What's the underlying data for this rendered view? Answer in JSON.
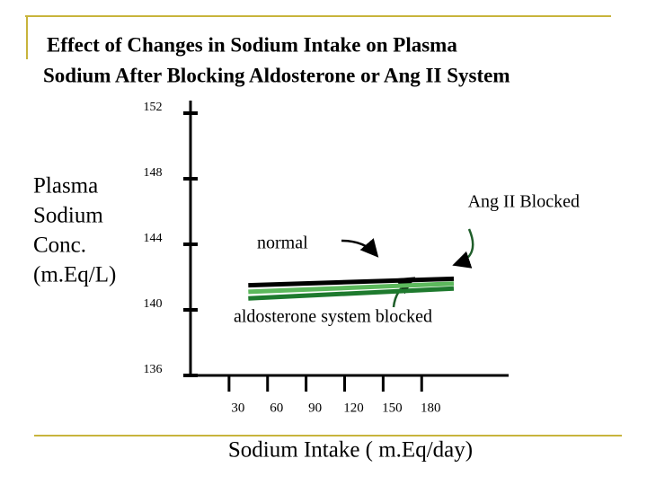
{
  "chart_data": {
    "type": "line",
    "title": [
      "Effect of Changes in Sodium Intake on Plasma",
      "Sodium After Blocking Aldosterone or Ang II System"
    ],
    "y_label": [
      "Plasma",
      "Sodium",
      "Conc.",
      "(m.Eq/L)"
    ],
    "x_label": "Sodium Intake ( m.Eq/day)",
    "x": [
      45,
      205
    ],
    "series": [
      {
        "name": "normal",
        "color": "#000000",
        "values": [
          141.5,
          141.9
        ]
      },
      {
        "name": "Ang II Blocked",
        "color": "#5cb85c",
        "values": [
          141.1,
          141.6
        ]
      },
      {
        "name": "aldosterone system blocked",
        "color": "#1e7a2e",
        "values": [
          140.7,
          141.3
        ]
      }
    ],
    "xlim": [
      0,
      240
    ],
    "xticks": [
      30,
      60,
      90,
      120,
      150,
      180
    ],
    "ylim": [
      136,
      152
    ],
    "yticks": [
      136,
      140,
      144,
      148,
      152
    ]
  }
}
